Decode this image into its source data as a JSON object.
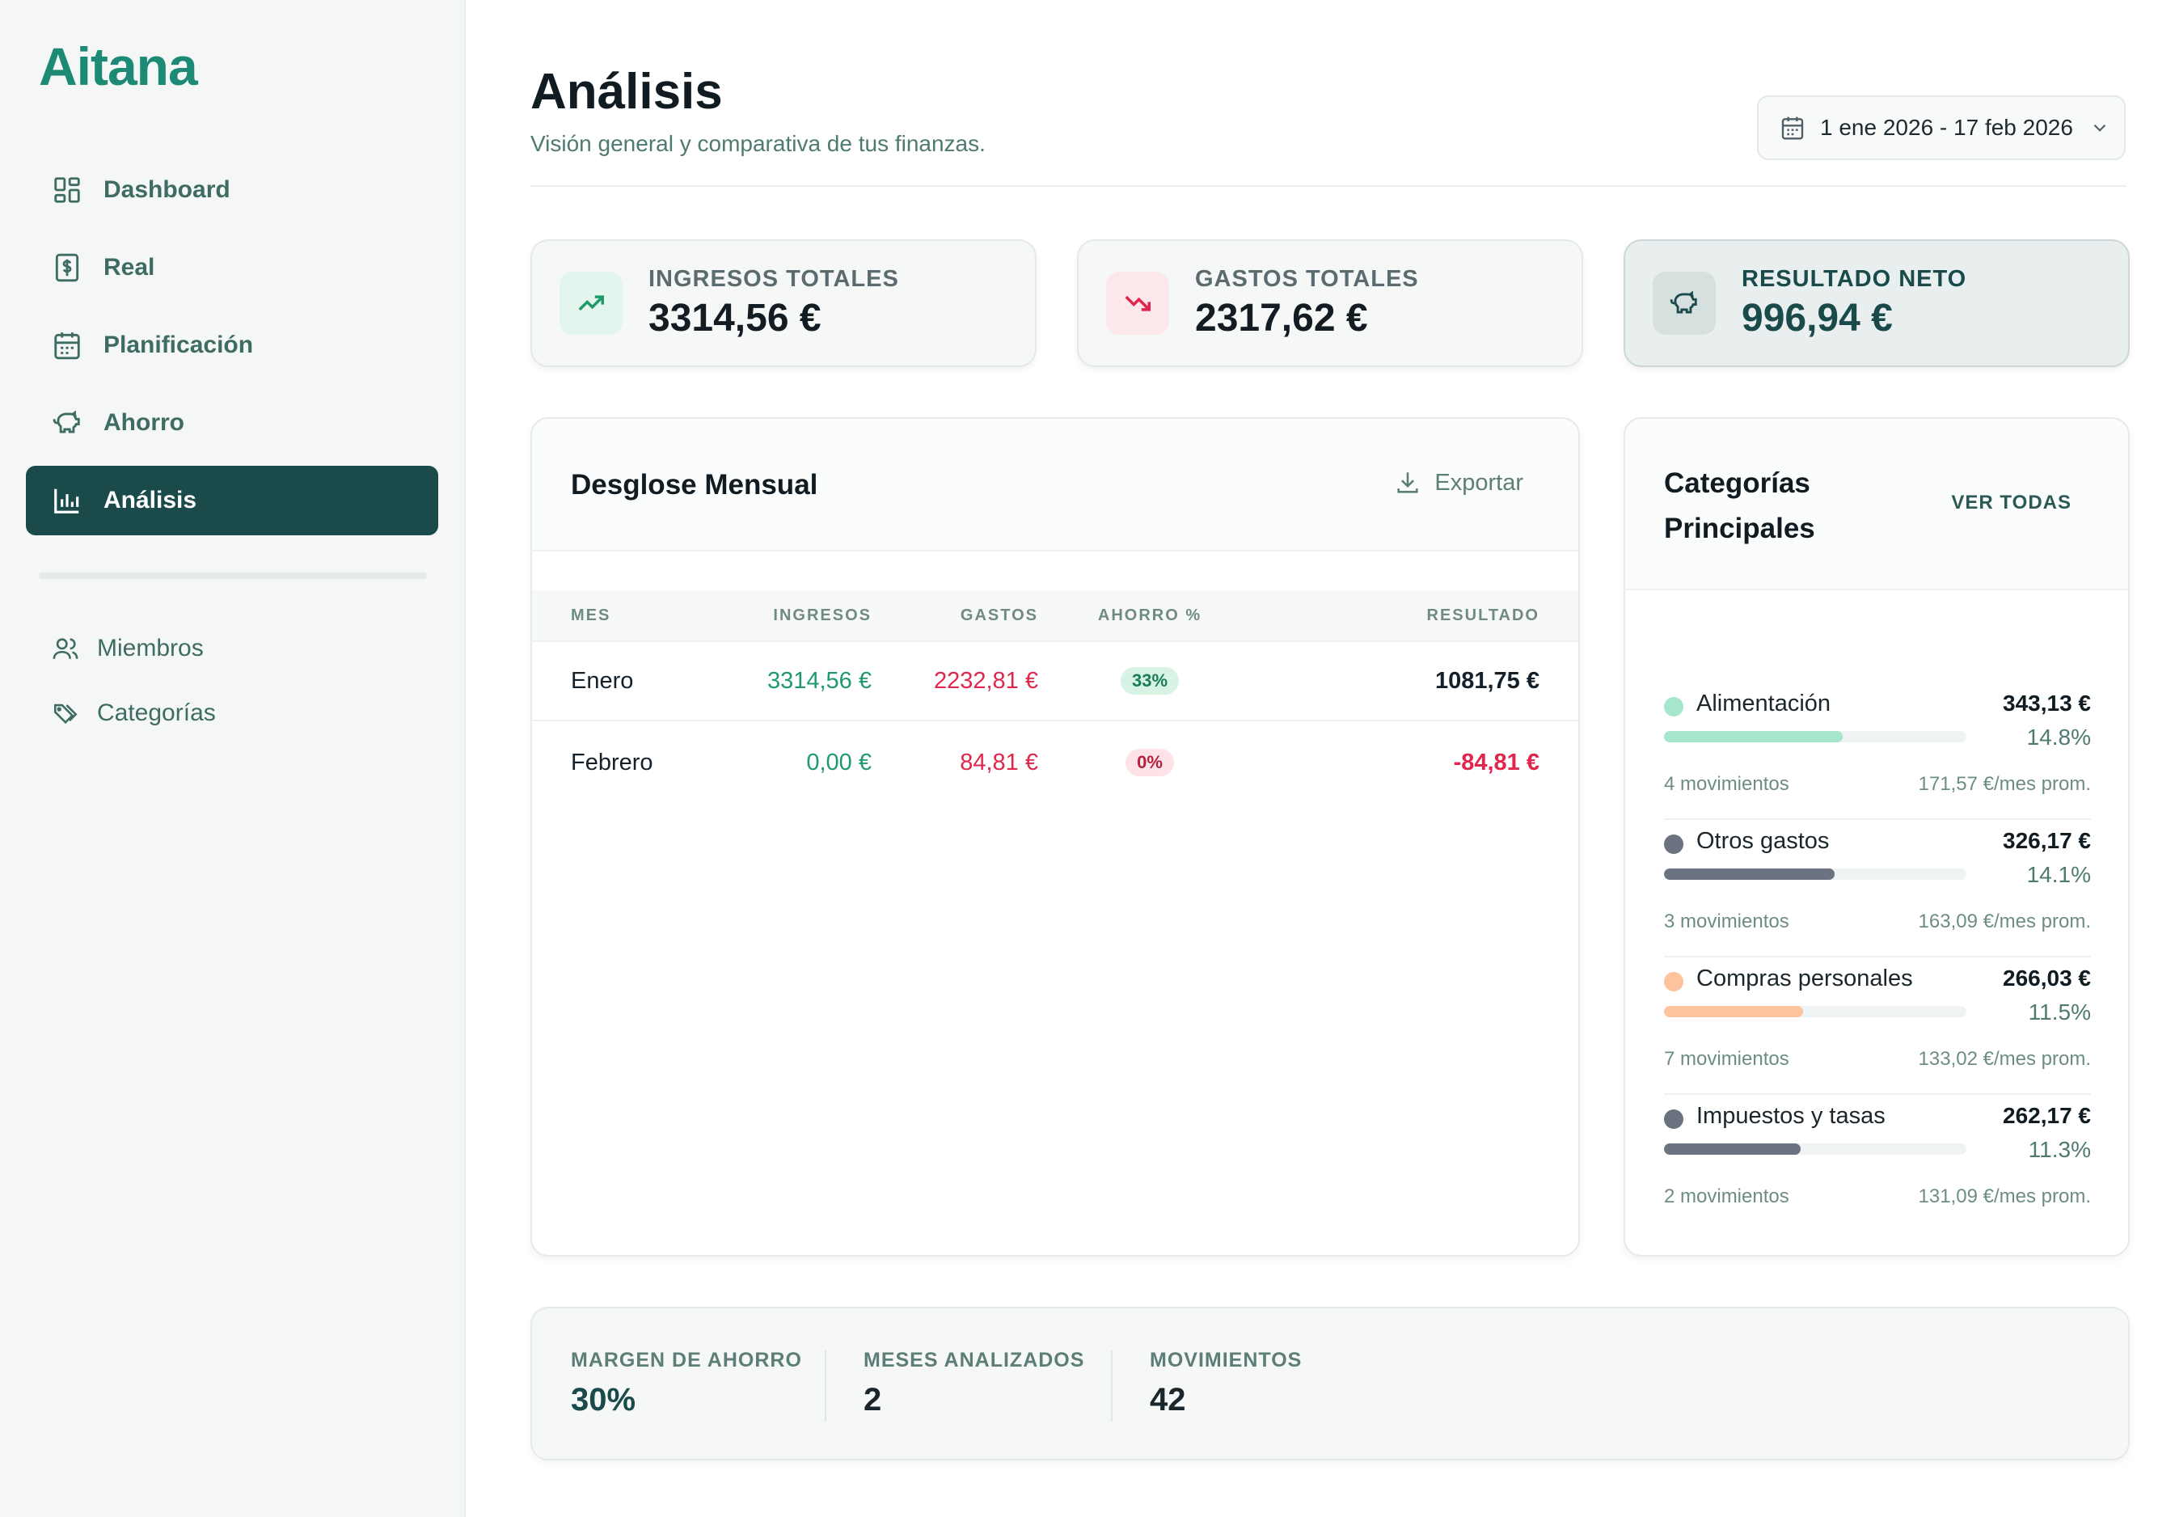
{
  "app": {
    "logo": "Aitana"
  },
  "sidebar": {
    "items": [
      {
        "label": "Dashboard",
        "icon": "dashboard-icon"
      },
      {
        "label": "Real",
        "icon": "dollar-receipt-icon"
      },
      {
        "label": "Planificación",
        "icon": "calendar-icon"
      },
      {
        "label": "Ahorro",
        "icon": "piggy-bank-icon"
      },
      {
        "label": "Análisis",
        "icon": "bar-chart-icon",
        "active": true
      }
    ],
    "secondary": [
      {
        "label": "Miembros",
        "icon": "users-icon"
      },
      {
        "label": "Categorías",
        "icon": "tags-icon"
      }
    ]
  },
  "header": {
    "title": "Análisis",
    "subtitle": "Visión general y comparativa de tus finanzas.",
    "date_range": "1 ene 2026 - 17 feb 2026"
  },
  "stats": [
    {
      "label": "INGRESOS TOTALES",
      "value": "3314,56 €",
      "icon": "trending-up-icon",
      "color": "#1e9a6c"
    },
    {
      "label": "GASTOS TOTALES",
      "value": "2317,62 €",
      "icon": "trending-down-icon",
      "color": "#e0264c"
    },
    {
      "label": "RESULTADO NETO",
      "value": "996,94 €",
      "icon": "piggy-bank-icon",
      "color": "#1b4a4b"
    }
  ],
  "desglose": {
    "title": "Desglose Mensual",
    "export_label": "Exportar",
    "columns": {
      "mes": "MES",
      "ingresos": "INGRESOS",
      "gastos": "GASTOS",
      "ahorro": "AHORRO %",
      "resultado": "RESULTADO"
    },
    "rows": [
      {
        "mes": "Enero",
        "ingresos": "3314,56 €",
        "gastos": "2232,81 €",
        "ahorro": "33%",
        "resultado": "1081,75 €"
      },
      {
        "mes": "Febrero",
        "ingresos": "0,00 €",
        "gastos": "84,81 €",
        "ahorro": "0%",
        "resultado": "-84,81 €"
      }
    ]
  },
  "categorias": {
    "title": "Categorías Principales",
    "ver_todas": "VER TODAS",
    "items": [
      {
        "name": "Alimentación",
        "amount": "343,13 €",
        "percent": "14.8%",
        "fill": 0.148,
        "movimientos": "4 movimientos",
        "avg": "171,57 €/mes prom.",
        "color": "#a6e6cb"
      },
      {
        "name": "Otros gastos",
        "amount": "326,17 €",
        "percent": "14.1%",
        "fill": 0.141,
        "movimientos": "3 movimientos",
        "avg": "163,09 €/mes prom.",
        "color": "#6b7280"
      },
      {
        "name": "Compras personales",
        "amount": "266,03 €",
        "percent": "11.5%",
        "fill": 0.115,
        "movimientos": "7 movimientos",
        "avg": "133,02 €/mes prom.",
        "color": "#fcc39d"
      },
      {
        "name": "Impuestos y tasas",
        "amount": "262,17 €",
        "percent": "11.3%",
        "fill": 0.113,
        "movimientos": "2 movimientos",
        "avg": "131,09 €/mes prom.",
        "color": "#6b7280"
      }
    ]
  },
  "summary": [
    {
      "label": "MARGEN DE AHORRO",
      "value": "30%"
    },
    {
      "label": "MESES ANALIZADOS",
      "value": "2"
    },
    {
      "label": "MOVIMIENTOS",
      "value": "42"
    }
  ]
}
